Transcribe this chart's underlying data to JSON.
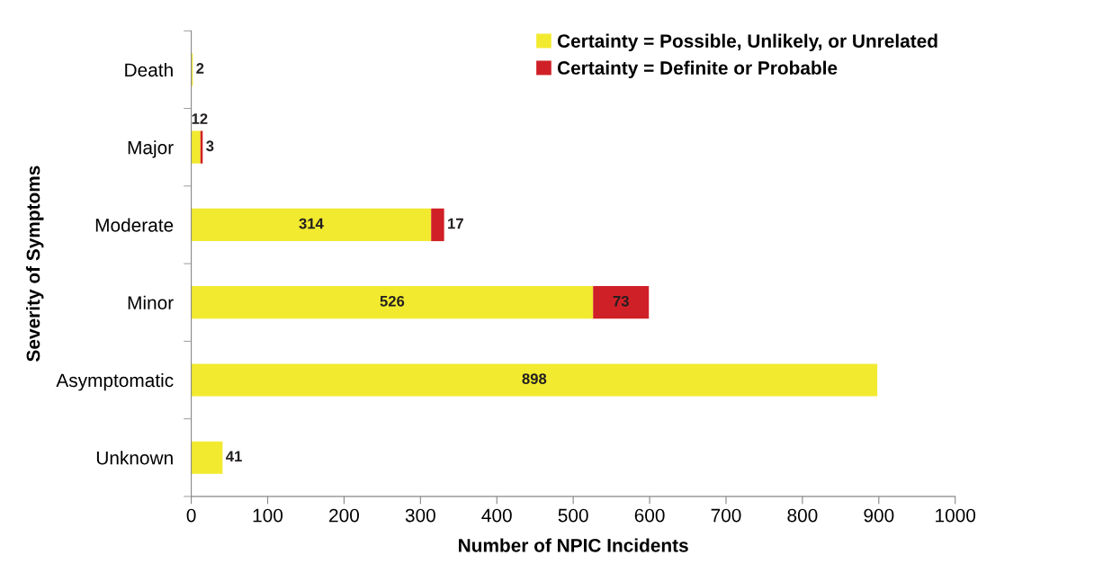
{
  "chart_data": {
    "type": "bar",
    "orientation": "horizontal",
    "stacked": true,
    "xlabel": "Number of NPIC Incidents",
    "ylabel": "Severity of Symptoms",
    "categories": [
      "Death",
      "Major",
      "Moderate",
      "Minor",
      "Asymptomatic",
      "Unknown"
    ],
    "series": [
      {
        "name": "Certainty = Possible, Unlikely, or Unrelated",
        "color": "#f2ea2f",
        "values": [
          2,
          12,
          314,
          526,
          898,
          41
        ],
        "value_labels": [
          "2",
          "12",
          "314",
          "526",
          "898",
          "41"
        ]
      },
      {
        "name": "Certainty = Definite or Probable",
        "color": "#d02027",
        "values": [
          null,
          3,
          17,
          73,
          null,
          null
        ],
        "value_labels": [
          null,
          "3",
          "17",
          "73",
          null,
          null
        ]
      }
    ],
    "xlim": [
      0,
      1000
    ],
    "xticks": [
      0,
      100,
      200,
      300,
      400,
      500,
      600,
      700,
      800,
      900,
      1000
    ],
    "grid": false,
    "legend": "top right"
  }
}
